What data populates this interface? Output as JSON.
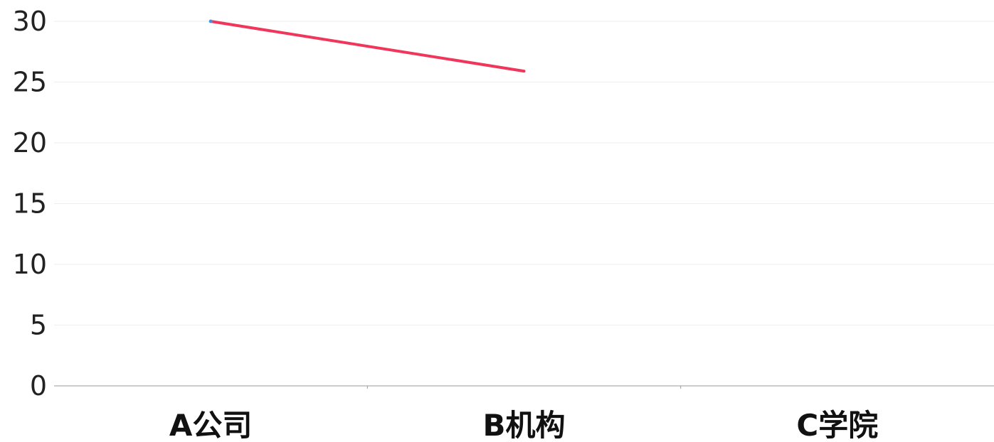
{
  "chart_data": {
    "type": "line",
    "title": "",
    "xlabel": "",
    "ylabel": "",
    "categories": [
      "A公司",
      "B机构",
      "C学院"
    ],
    "series": [
      {
        "values": [
          30,
          25.9,
          null
        ],
        "color": "#f0365a",
        "marker_color": "#4a90d9"
      }
    ],
    "ylim": [
      0,
      30
    ],
    "yticks": [
      0,
      5,
      10,
      15,
      20,
      25,
      30
    ],
    "grid": true,
    "legend": "none"
  },
  "colors": {
    "grid": "#eeeeee",
    "axis": "#999999"
  }
}
